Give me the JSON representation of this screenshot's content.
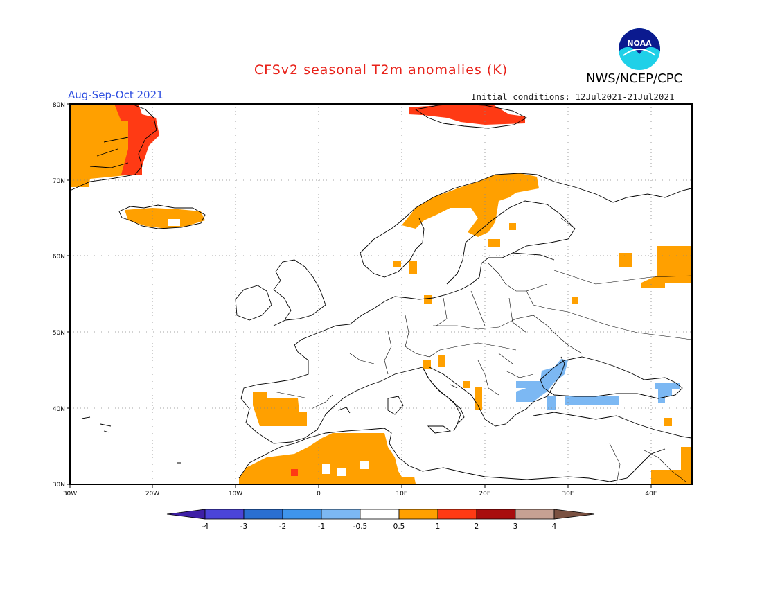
{
  "header": {
    "title": "CFSv2 seasonal T2m anomalies (K)",
    "agency": "NWS/NCEP/CPC",
    "logo_text": "NOAA",
    "season": "Aug-Sep-Oct 2021",
    "initial_conditions": "Initial conditions: 12Jul2021-21Jul2021"
  },
  "map": {
    "region": "Europe",
    "lon_range": [
      -30,
      45
    ],
    "lat_range": [
      30,
      80
    ],
    "lat_ticks": [
      "30N",
      "40N",
      "50N",
      "60N",
      "70N",
      "80N"
    ],
    "lon_ticks": [
      "30W",
      "20W",
      "10W",
      "0",
      "10E",
      "20E",
      "30E",
      "40E"
    ],
    "grid": "dotted"
  },
  "colorbar": {
    "labels": [
      "-4",
      "-3",
      "-2",
      "-1",
      "-0.5",
      "0.5",
      "1",
      "2",
      "3",
      "4"
    ],
    "colors": [
      "#3e1fa6",
      "#4b44d8",
      "#2a6fd2",
      "#3f95ec",
      "#7cb8f3",
      "#ffffff",
      "#ffa000",
      "#ff3a14",
      "#a80d0d",
      "#c6a193",
      "#7a5141"
    ]
  },
  "colors": {
    "warm_05_1": "#ffa000",
    "warm_1_2": "#ff3a14",
    "cool_05_1": "#7cb8f3",
    "title": "#e8221a",
    "season": "#2f4fe0"
  }
}
